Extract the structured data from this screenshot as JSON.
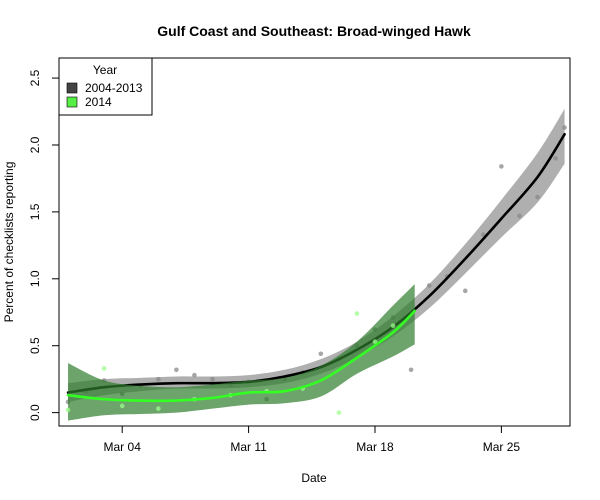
{
  "chart_data": {
    "type": "line",
    "title": "Gulf Coast and Southeast: Broad-winged Hawk",
    "xlabel": "Date",
    "ylabel": "Percent of checklists reporting",
    "x_ticks": [
      {
        "day": 4,
        "label": "Mar 04"
      },
      {
        "day": 11,
        "label": "Mar 11"
      },
      {
        "day": 18,
        "label": "Mar 18"
      },
      {
        "day": 25,
        "label": "Mar 25"
      }
    ],
    "y_ticks": [
      {
        "value": 0.0,
        "label": "0.0"
      },
      {
        "value": 0.5,
        "label": "0.5"
      },
      {
        "value": 1.0,
        "label": "1.0"
      },
      {
        "value": 1.5,
        "label": "1.5"
      },
      {
        "value": 2.0,
        "label": "2.0"
      },
      {
        "value": 2.5,
        "label": "2.5"
      }
    ],
    "xlim": [
      0.5,
      28.8
    ],
    "ylim": [
      -0.1,
      2.65
    ],
    "legend": {
      "title": "Year",
      "position": "top-left",
      "entries": [
        {
          "label": "2004-2013",
          "color": "#444444"
        },
        {
          "label": "2014",
          "color": "#55ee44"
        }
      ]
    },
    "series": [
      {
        "name": "2004-2013",
        "line_color": "#000000",
        "band_color": "#7a7a7a",
        "point_color": "#888888",
        "fit": [
          {
            "x": 1,
            "y": 0.15,
            "lo": 0.08,
            "hi": 0.22
          },
          {
            "x": 3,
            "y": 0.19,
            "lo": 0.13,
            "hi": 0.25
          },
          {
            "x": 5,
            "y": 0.21,
            "lo": 0.16,
            "hi": 0.26
          },
          {
            "x": 7,
            "y": 0.22,
            "lo": 0.18,
            "hi": 0.27
          },
          {
            "x": 9,
            "y": 0.22,
            "lo": 0.18,
            "hi": 0.27
          },
          {
            "x": 11,
            "y": 0.23,
            "lo": 0.19,
            "hi": 0.28
          },
          {
            "x": 13,
            "y": 0.27,
            "lo": 0.22,
            "hi": 0.32
          },
          {
            "x": 15,
            "y": 0.34,
            "lo": 0.29,
            "hi": 0.4
          },
          {
            "x": 17,
            "y": 0.47,
            "lo": 0.41,
            "hi": 0.53
          },
          {
            "x": 19,
            "y": 0.64,
            "lo": 0.57,
            "hi": 0.72
          },
          {
            "x": 21,
            "y": 0.87,
            "lo": 0.78,
            "hi": 0.96
          },
          {
            "x": 23,
            "y": 1.15,
            "lo": 1.04,
            "hi": 1.26
          },
          {
            "x": 25,
            "y": 1.45,
            "lo": 1.31,
            "hi": 1.59
          },
          {
            "x": 27,
            "y": 1.76,
            "lo": 1.57,
            "hi": 1.94
          },
          {
            "x": 28.5,
            "y": 2.08,
            "lo": 1.86,
            "hi": 2.27
          }
        ],
        "points": [
          {
            "x": 1,
            "y": 0.08
          },
          {
            "x": 2,
            "y": 0.16
          },
          {
            "x": 3,
            "y": 0.24
          },
          {
            "x": 4,
            "y": 0.14
          },
          {
            "x": 5,
            "y": 0.2
          },
          {
            "x": 6,
            "y": 0.25
          },
          {
            "x": 7,
            "y": 0.32
          },
          {
            "x": 8,
            "y": 0.28
          },
          {
            "x": 9,
            "y": 0.25
          },
          {
            "x": 10,
            "y": 0.21
          },
          {
            "x": 11,
            "y": 0.23
          },
          {
            "x": 12,
            "y": 0.1
          },
          {
            "x": 13,
            "y": 0.25
          },
          {
            "x": 14,
            "y": 0.3
          },
          {
            "x": 15,
            "y": 0.44
          },
          {
            "x": 16,
            "y": 0.4
          },
          {
            "x": 17,
            "y": 0.5
          },
          {
            "x": 18,
            "y": 0.62
          },
          {
            "x": 19,
            "y": 0.71
          },
          {
            "x": 20,
            "y": 0.32
          },
          {
            "x": 21,
            "y": 0.95
          },
          {
            "x": 22,
            "y": 1.02
          },
          {
            "x": 23,
            "y": 0.91
          },
          {
            "x": 24,
            "y": 1.33
          },
          {
            "x": 25,
            "y": 1.84
          },
          {
            "x": 26,
            "y": 1.47
          },
          {
            "x": 27,
            "y": 1.61
          },
          {
            "x": 28,
            "y": 1.9
          },
          {
            "x": 28.5,
            "y": 2.13
          }
        ]
      },
      {
        "name": "2014",
        "line_color": "#33ff22",
        "band_color": "#2e7d2e",
        "point_color": "#99ff88",
        "fit": [
          {
            "x": 1,
            "y": 0.13,
            "lo": -0.06,
            "hi": 0.37
          },
          {
            "x": 3,
            "y": 0.1,
            "lo": -0.02,
            "hi": 0.24
          },
          {
            "x": 5,
            "y": 0.09,
            "lo": -0.01,
            "hi": 0.2
          },
          {
            "x": 7,
            "y": 0.09,
            "lo": 0.0,
            "hi": 0.19
          },
          {
            "x": 9,
            "y": 0.11,
            "lo": 0.03,
            "hi": 0.21
          },
          {
            "x": 11,
            "y": 0.15,
            "lo": 0.06,
            "hi": 0.24
          },
          {
            "x": 13,
            "y": 0.16,
            "lo": 0.07,
            "hi": 0.26
          },
          {
            "x": 15,
            "y": 0.24,
            "lo": 0.12,
            "hi": 0.35
          },
          {
            "x": 17,
            "y": 0.41,
            "lo": 0.29,
            "hi": 0.53
          },
          {
            "x": 19,
            "y": 0.6,
            "lo": 0.42,
            "hi": 0.8
          },
          {
            "x": 20.2,
            "y": 0.76,
            "lo": 0.51,
            "hi": 0.96
          }
        ],
        "points": [
          {
            "x": 1,
            "y": 0.02
          },
          {
            "x": 3,
            "y": 0.33
          },
          {
            "x": 4,
            "y": 0.05
          },
          {
            "x": 6,
            "y": 0.03
          },
          {
            "x": 8,
            "y": 0.1
          },
          {
            "x": 10,
            "y": 0.13
          },
          {
            "x": 12,
            "y": 0.16
          },
          {
            "x": 14,
            "y": 0.18
          },
          {
            "x": 16,
            "y": 0.0
          },
          {
            "x": 17,
            "y": 0.74
          },
          {
            "x": 18,
            "y": 0.53
          },
          {
            "x": 19,
            "y": 0.65
          }
        ]
      }
    ]
  }
}
